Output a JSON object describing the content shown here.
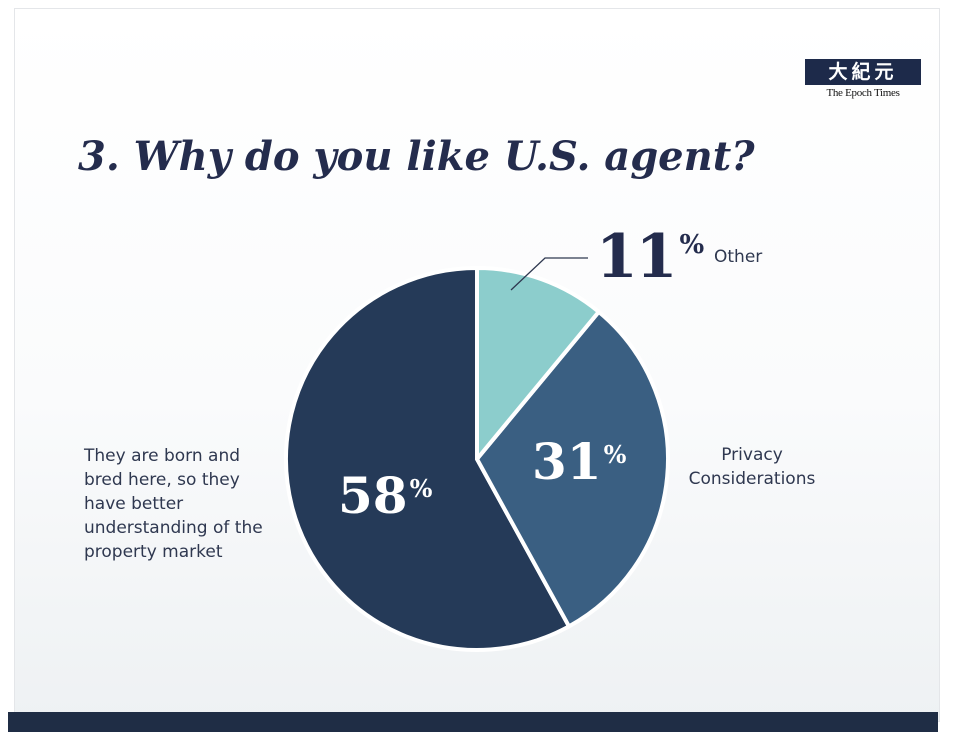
{
  "logo": {
    "chinese": "大紀元",
    "english": "The Epoch Times"
  },
  "title": "3. Why do you like U.S. agent?",
  "chart_data": {
    "type": "pie",
    "title": "3. Why do you like U.S. agent?",
    "slices": [
      {
        "label": "Other",
        "value": 11,
        "display": "11",
        "color": "#8ccdcc"
      },
      {
        "label": "Privacy Considerations",
        "value": 31,
        "display": "31",
        "color": "#3a5f82"
      },
      {
        "label": "They are born and bred here, so they have better understanding of the property market",
        "value": 58,
        "display": "58",
        "color": "#253a58"
      }
    ],
    "percent_symbol": "%",
    "label_lines": {
      "left": [
        "They are born and",
        "bred here, so they",
        "have better",
        "understanding of the",
        "property market"
      ],
      "right": [
        "Privacy",
        "Considerations"
      ],
      "other": "Other"
    }
  }
}
